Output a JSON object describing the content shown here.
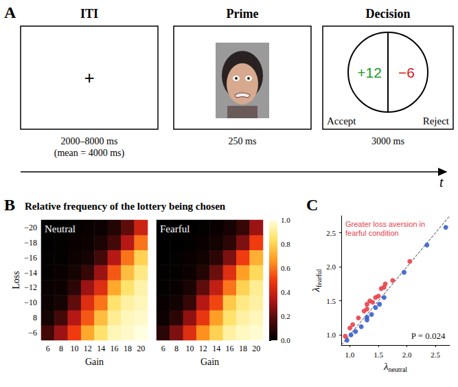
{
  "diagram": {
    "letter": "A",
    "stages": [
      {
        "title": "ITI",
        "symbol": "+",
        "caption": [
          "2000–8000 ms",
          "(mean = 4000 ms)"
        ]
      },
      {
        "title": "Prime",
        "caption": [
          "250 ms"
        ]
      },
      {
        "title": "Decision",
        "gain": "+12",
        "loss": "−6",
        "accept": "Accept",
        "reject": "Reject",
        "caption": [
          "3000 ms"
        ]
      }
    ],
    "time_label": "t"
  },
  "chart_data": [
    {
      "type": "heatmap",
      "letter": "B",
      "title": "Relative frequency of the lottery being chosen",
      "label": "Neutral",
      "x_label": "Gain",
      "y_label": "Loss",
      "categories": [
        6,
        8,
        10,
        12,
        14,
        16,
        18,
        20
      ],
      "y_categories": [
        "−6",
        "8",
        "−10",
        "−12",
        "−14",
        "−16",
        "−18",
        "−20"
      ],
      "cells": [
        [
          0.15,
          0.3,
          0.5,
          0.7,
          0.85,
          0.95,
          0.97,
          1.0
        ],
        [
          0.05,
          0.15,
          0.35,
          0.55,
          0.75,
          0.9,
          0.95,
          0.97
        ],
        [
          0.03,
          0.05,
          0.2,
          0.45,
          0.6,
          0.85,
          0.92,
          0.95
        ],
        [
          0.02,
          0.03,
          0.1,
          0.3,
          0.45,
          0.7,
          0.85,
          0.93
        ],
        [
          0.01,
          0.02,
          0.05,
          0.12,
          0.3,
          0.55,
          0.75,
          0.88
        ],
        [
          0.01,
          0.01,
          0.03,
          0.05,
          0.15,
          0.35,
          0.6,
          0.8
        ],
        [
          0.0,
          0.01,
          0.02,
          0.03,
          0.06,
          0.15,
          0.35,
          0.6
        ],
        [
          0.0,
          0.0,
          0.01,
          0.02,
          0.03,
          0.08,
          0.2,
          0.4
        ]
      ]
    },
    {
      "type": "heatmap",
      "label": "Fearful",
      "x_label": "Gain",
      "tick_labels": "x",
      "categories": [
        6,
        8,
        10,
        12,
        14,
        16,
        18,
        20
      ],
      "y_categories": [
        "−6",
        "8",
        "−10",
        "−12",
        "−14",
        "−16",
        "−18",
        "−20"
      ],
      "cells": [
        [
          0.1,
          0.25,
          0.45,
          0.65,
          0.8,
          0.92,
          0.96,
          0.98
        ],
        [
          0.03,
          0.1,
          0.28,
          0.48,
          0.68,
          0.85,
          0.92,
          0.95
        ],
        [
          0.02,
          0.04,
          0.12,
          0.35,
          0.52,
          0.78,
          0.88,
          0.92
        ],
        [
          0.01,
          0.02,
          0.06,
          0.2,
          0.38,
          0.6,
          0.8,
          0.9
        ],
        [
          0.01,
          0.01,
          0.03,
          0.08,
          0.22,
          0.45,
          0.68,
          0.82
        ],
        [
          0.0,
          0.01,
          0.02,
          0.04,
          0.1,
          0.25,
          0.5,
          0.72
        ],
        [
          0.0,
          0.0,
          0.01,
          0.02,
          0.04,
          0.1,
          0.25,
          0.5
        ],
        [
          0.0,
          0.0,
          0.0,
          0.01,
          0.02,
          0.05,
          0.12,
          0.3
        ]
      ],
      "colorbar": {
        "range": [
          0,
          1
        ],
        "ticks": [
          {
            "value": 0,
            "label": "0.0"
          },
          {
            "value": 0.2,
            "label": "0.2"
          },
          {
            "value": 0.4,
            "label": "0.4"
          },
          {
            "value": 0.6,
            "label": "0.6"
          },
          {
            "value": 0.8,
            "label": "0.8"
          },
          {
            "value": 1,
            "label": "1.0"
          }
        ]
      }
    },
    {
      "type": "scatter",
      "letter": "C",
      "x_label": {
        "symbol": "λ",
        "subscript": "neutral"
      },
      "y_label": {
        "symbol": "λ",
        "subscript": "fearful"
      },
      "xlim": [
        0.85,
        2.75
      ],
      "ylim": [
        0.85,
        2.75
      ],
      "xticks": [
        {
          "value": 1,
          "label": "1.0"
        },
        {
          "value": 1.5,
          "label": "1.5"
        },
        {
          "value": 2,
          "label": "2.0"
        },
        {
          "value": 2.5,
          "label": "2.5"
        }
      ],
      "yticks": [
        {
          "value": 1,
          "label": "1.0"
        },
        {
          "value": 1.5,
          "label": "1.5"
        },
        {
          "value": 2,
          "label": "2.0"
        },
        {
          "value": 2.5,
          "label": "2.5"
        }
      ],
      "series": [
        {
          "type": "scatter",
          "marker": "circle",
          "x": [
            0.95,
            1.02,
            1.1,
            1.2,
            1.3,
            1.38,
            1.45,
            1.52,
            1.6,
            1.95,
            2.35,
            2.68,
            1.3,
            0.92,
            1.0,
            1.05,
            1.15,
            1.25,
            1.3,
            1.35,
            1.4,
            1.45,
            1.5,
            1.6,
            1.62,
            1.75,
            2.05,
            1.3,
            1.55
          ],
          "values": [
            0.92,
            1.0,
            1.05,
            1.12,
            1.22,
            1.3,
            1.4,
            1.45,
            1.55,
            1.92,
            2.32,
            2.58,
            1.26,
            0.98,
            1.1,
            1.15,
            1.25,
            1.35,
            1.45,
            1.5,
            1.48,
            1.55,
            1.57,
            1.7,
            1.75,
            1.8,
            2.08,
            1.38,
            1.68
          ],
          "colors": [
            "#3a5fcd",
            "#3a5fcd",
            "#3a5fcd",
            "#3a5fcd",
            "#3a5fcd",
            "#3a5fcd",
            "#3a5fcd",
            "#3a5fcd",
            "#3a5fcd",
            "#3a5fcd",
            "#3a5fcd",
            "#3a5fcd",
            "#3a5fcd",
            "#e8404a",
            "#e8404a",
            "#e8404a",
            "#e8404a",
            "#e8404a",
            "#e8404a",
            "#e8404a",
            "#e8404a",
            "#e8404a",
            "#e8404a",
            "#e8404a",
            "#e8404a",
            "#e8404a",
            "#e8404a",
            "#e8404a",
            "#e8404a"
          ]
        },
        {
          "type": "line",
          "line_style": "dashed",
          "color": "#333333",
          "x": [
            0.85,
            2.75
          ],
          "values": [
            0.85,
            2.75
          ]
        }
      ],
      "annotations": [
        {
          "text": "Greater loss aversion in fearful condition",
          "color": "#e8404a"
        },
        {
          "text": "P = 0.024",
          "color": "#111111"
        }
      ]
    }
  ]
}
